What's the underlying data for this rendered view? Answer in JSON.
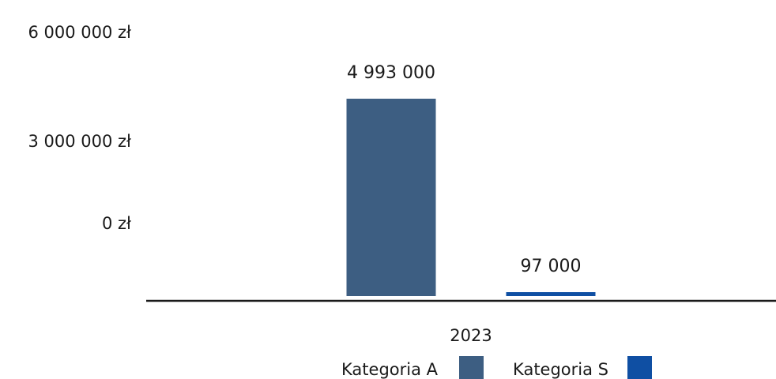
{
  "chart_data": {
    "type": "bar",
    "categories": [
      "2023"
    ],
    "series": [
      {
        "name": "Kategoria A",
        "values": [
          4993000
        ],
        "color": "#3d5e82",
        "label": "4 993 000"
      },
      {
        "name": "Kategoria S",
        "values": [
          97000
        ],
        "color": "#0f4fa3",
        "label": "97 000"
      }
    ],
    "y_ticks": [
      {
        "value": 6000000,
        "label": "6 000 000 zł"
      },
      {
        "value": 3000000,
        "label": "3 000 000 zł"
      },
      {
        "value": 0,
        "label": "0 zł"
      }
    ],
    "ylim": [
      0,
      6000000
    ],
    "title": "",
    "xlabel": "",
    "ylabel": "",
    "grid": false,
    "legend_position": "bottom",
    "axis_color": "#1a1a1a"
  }
}
